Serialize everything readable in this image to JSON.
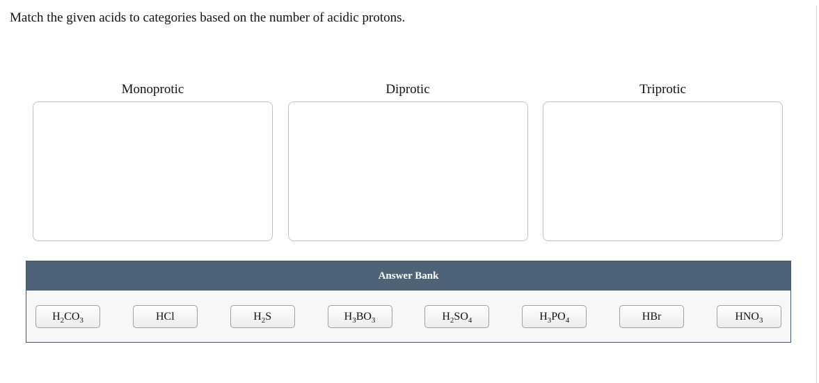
{
  "prompt": "Match the given acids to categories based on the number of acidic protons.",
  "categories": [
    {
      "label": "Monoprotic"
    },
    {
      "label": "Diprotic"
    },
    {
      "label": "Triprotic"
    }
  ],
  "answer_bank": {
    "title": "Answer Bank",
    "chips": [
      {
        "formula": "H_2CO_3",
        "name": "h2co3"
      },
      {
        "formula": "HCl",
        "name": "hcl"
      },
      {
        "formula": "H_2S",
        "name": "h2s"
      },
      {
        "formula": "H_3BO_3",
        "name": "h3bo3"
      },
      {
        "formula": "H_2SO_4",
        "name": "h2so4"
      },
      {
        "formula": "H_3PO_4",
        "name": "h3po4"
      },
      {
        "formula": "HBr",
        "name": "hbr"
      },
      {
        "formula": "HNO_3",
        "name": "hno3"
      }
    ]
  },
  "colors": {
    "bank_header_bg": "#4e6278",
    "bank_border": "#44566b",
    "bank_body_bg": "#f7f7f8",
    "dropzone_border": "#c2c2c2",
    "chip_border": "#a0a0a0",
    "text": "#111111"
  }
}
